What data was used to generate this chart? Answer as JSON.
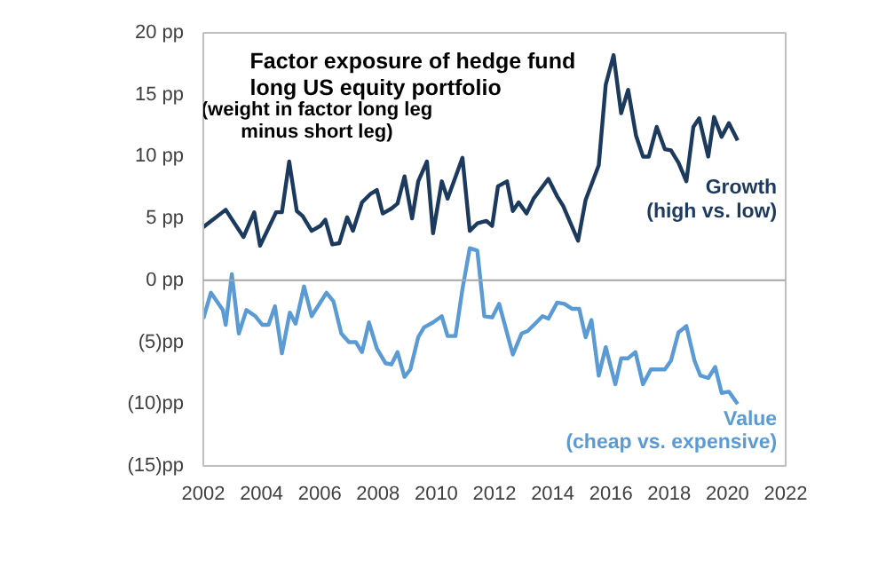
{
  "chart_data": {
    "type": "line",
    "title": "Factor exposure of hedge fund long US equity portfolio",
    "subtitle": "(weight in factor long leg minus short leg)",
    "xlim": [
      2002,
      2022
    ],
    "xticks": [
      2002,
      2004,
      2006,
      2008,
      2010,
      2012,
      2014,
      2016,
      2018,
      2020,
      2022
    ],
    "ylim": [
      -15,
      20
    ],
    "yticks": [
      {
        "value": -15,
        "label": "(15)pp"
      },
      {
        "value": -10,
        "label": "(10)pp"
      },
      {
        "value": -5,
        "label": "(5)pp"
      },
      {
        "value": 0,
        "label": "0 pp"
      },
      {
        "value": 5,
        "label": "5 pp"
      },
      {
        "value": 10,
        "label": "10 pp"
      },
      {
        "value": 15,
        "label": "15 pp"
      },
      {
        "value": 20,
        "label": "20 pp"
      }
    ],
    "grid": false,
    "legend": false,
    "marker": "none",
    "line_style": "solid",
    "ref_lines": [
      {
        "axis": "y",
        "value": 0,
        "color": "#a6a6a6"
      }
    ],
    "series": [
      {
        "name": "Growth (high vs. low)",
        "color": "#1c3a5e",
        "x": [
          2002.0,
          2002.77,
          2003.38,
          2003.75,
          2003.95,
          2004.5,
          2004.7,
          2004.95,
          2005.21,
          2005.41,
          2005.72,
          2006.02,
          2006.19,
          2006.43,
          2006.67,
          2006.94,
          2007.14,
          2007.45,
          2007.75,
          2007.96,
          2008.16,
          2008.46,
          2008.67,
          2008.91,
          2009.17,
          2009.38,
          2009.68,
          2009.89,
          2010.19,
          2010.39,
          2010.9,
          2011.15,
          2011.41,
          2011.72,
          2011.92,
          2012.12,
          2012.43,
          2012.63,
          2012.83,
          2013.1,
          2013.34,
          2013.85,
          2014.15,
          2014.36,
          2014.87,
          2015.13,
          2015.58,
          2015.82,
          2016.09,
          2016.35,
          2016.59,
          2016.86,
          2017.1,
          2017.3,
          2017.57,
          2017.85,
          2018.06,
          2018.32,
          2018.59,
          2018.83,
          2019.03,
          2019.34,
          2019.54,
          2019.8,
          2020.05,
          2020.35
        ],
        "values": [
          4.3,
          5.7,
          3.5,
          5.5,
          2.8,
          5.5,
          5.5,
          9.6,
          5.6,
          5.2,
          4.0,
          4.4,
          4.9,
          2.9,
          3.0,
          5.1,
          4.0,
          6.3,
          7.0,
          7.3,
          5.4,
          5.8,
          6.2,
          8.4,
          5.0,
          8.0,
          9.6,
          3.8,
          8.0,
          6.6,
          9.9,
          4.0,
          4.6,
          4.8,
          4.4,
          7.6,
          8.0,
          5.6,
          6.3,
          5.4,
          6.6,
          8.2,
          6.8,
          6.0,
          3.2,
          6.5,
          9.3,
          15.8,
          18.2,
          13.5,
          15.4,
          11.7,
          10.0,
          10.0,
          12.4,
          10.6,
          10.5,
          9.5,
          8.0,
          12.4,
          13.1,
          10.0,
          13.2,
          11.6,
          12.7,
          11.3
        ]
      },
      {
        "name": "Value (cheap vs. expensive)",
        "color": "#5b9bd5",
        "x": [
          2002.0,
          2002.26,
          2002.67,
          2002.77,
          2002.98,
          2003.22,
          2003.48,
          2003.79,
          2004.03,
          2004.24,
          2004.46,
          2004.7,
          2004.97,
          2005.17,
          2005.46,
          2005.72,
          2006.23,
          2006.47,
          2006.74,
          2007.0,
          2007.24,
          2007.45,
          2007.69,
          2007.96,
          2008.26,
          2008.46,
          2008.67,
          2008.91,
          2009.11,
          2009.38,
          2009.58,
          2009.89,
          2010.19,
          2010.39,
          2010.66,
          2010.9,
          2011.15,
          2011.41,
          2011.65,
          2011.92,
          2012.16,
          2012.63,
          2012.93,
          2013.14,
          2013.44,
          2013.65,
          2013.85,
          2014.15,
          2014.4,
          2014.66,
          2014.91,
          2015.13,
          2015.33,
          2015.58,
          2015.82,
          2016.15,
          2016.35,
          2016.59,
          2016.84,
          2017.1,
          2017.37,
          2017.61,
          2017.85,
          2018.06,
          2018.32,
          2018.59,
          2018.87,
          2019.07,
          2019.34,
          2019.58,
          2019.8,
          2020.05,
          2020.35
        ],
        "values": [
          -3.1,
          -1.0,
          -2.4,
          -3.6,
          0.5,
          -4.3,
          -2.4,
          -2.9,
          -3.6,
          -3.6,
          -2.1,
          -5.9,
          -2.6,
          -3.5,
          -0.5,
          -2.9,
          -1.0,
          -1.7,
          -4.3,
          -5.0,
          -5.0,
          -5.8,
          -3.4,
          -5.5,
          -6.7,
          -6.8,
          -5.8,
          -7.8,
          -7.2,
          -4.6,
          -3.8,
          -3.4,
          -2.9,
          -4.5,
          -4.5,
          -0.7,
          2.6,
          2.4,
          -2.9,
          -3.0,
          -1.9,
          -6.0,
          -4.3,
          -4.1,
          -3.4,
          -2.9,
          -3.1,
          -1.8,
          -1.9,
          -2.3,
          -2.3,
          -4.6,
          -3.2,
          -7.7,
          -5.4,
          -8.4,
          -6.3,
          -6.3,
          -5.8,
          -8.4,
          -7.2,
          -7.2,
          -7.2,
          -6.5,
          -4.2,
          -3.7,
          -6.5,
          -7.7,
          -7.9,
          -7.0,
          -9.1,
          -9.0,
          -10.0
        ]
      }
    ]
  }
}
